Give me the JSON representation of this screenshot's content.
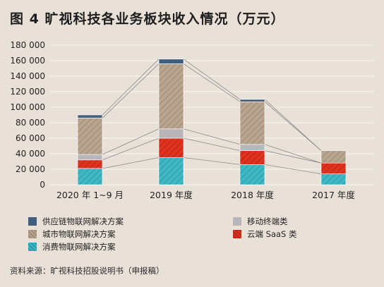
{
  "title": "图 4  旷视科技各业务板块收入情况（万元）",
  "source_note": "资料来源：旷视科技招股说明书（申报稿）",
  "colors": {
    "background": "#e9e1d8",
    "supply_chain": "#3f5f7c",
    "city": "#b8a58f",
    "consumer": "#3fb8c3",
    "mobile": "#b9b6b9",
    "cloud": "#e03220",
    "grid": "#ffffff",
    "connector": "#8a8a8a"
  },
  "legend": [
    {
      "key": "supply_chain",
      "label": "供应链物联网解决方案",
      "color": "#3f5f7c",
      "hatched": false
    },
    {
      "key": "mobile",
      "label": "移动终端类",
      "color": "#b9b6b9",
      "hatched": false
    },
    {
      "key": "city",
      "label": "城市物联网解决方案",
      "color": "#b8a58f",
      "hatched": true
    },
    {
      "key": "cloud",
      "label": "云端 SaaS 类",
      "color": "#e03220",
      "hatched": true
    },
    {
      "key": "consumer",
      "label": "消费物联网解决方案",
      "color": "#3fb8c3",
      "hatched": true
    }
  ],
  "chart_data": {
    "type": "bar",
    "stacked": true,
    "categories": [
      "2020 年 1~9 月",
      "2019 年度",
      "2018 年度",
      "2017 年度"
    ],
    "series": [
      {
        "name": "消费物联网解决方案",
        "key": "consumer",
        "values": [
          21000,
          35000,
          26000,
          14000
        ]
      },
      {
        "name": "云端 SaaS 类",
        "key": "cloud",
        "values": [
          11000,
          25000,
          18000,
          14000
        ]
      },
      {
        "name": "移动终端类",
        "key": "mobile",
        "values": [
          7000,
          12000,
          8000,
          0
        ]
      },
      {
        "name": "城市物联网解决方案",
        "key": "city",
        "values": [
          47000,
          84000,
          55000,
          16000
        ]
      },
      {
        "name": "供应链物联网解决方案",
        "key": "supply_chain",
        "values": [
          4000,
          6000,
          3000,
          0
        ]
      }
    ],
    "ylim": [
      0,
      180000
    ],
    "yticks": [
      0,
      20000,
      40000,
      60000,
      80000,
      100000,
      120000,
      140000,
      160000,
      180000
    ],
    "ytick_labels": [
      "0",
      "20 000",
      "40 000",
      "60 000",
      "80 000",
      "100 000",
      "120 000",
      "140 000",
      "160 000",
      "180 000"
    ],
    "grid": true,
    "connector_lines": true,
    "legend_position": "bottom"
  }
}
